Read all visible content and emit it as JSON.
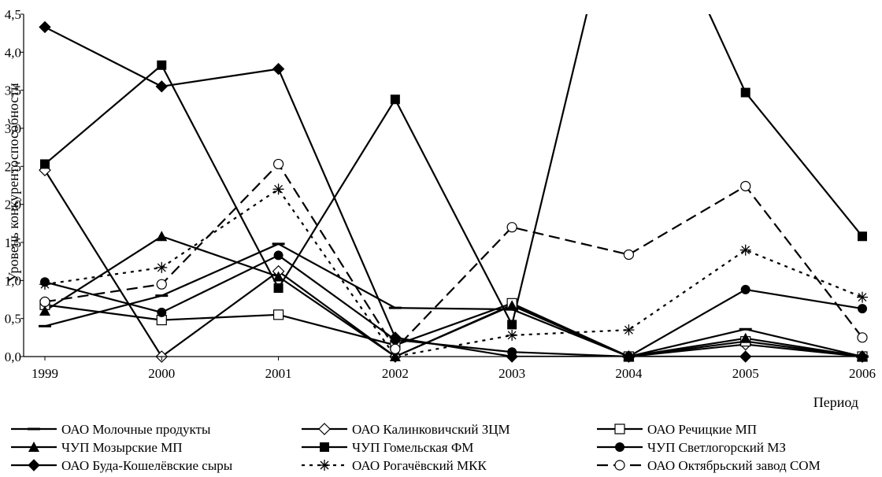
{
  "chart_data": {
    "type": "line",
    "title": "",
    "xlabel": "Период",
    "ylabel": "Уровень конкурентоспособности",
    "categories": [
      "1999",
      "2000",
      "2001",
      "2002",
      "2003",
      "2004",
      "2005",
      "2006"
    ],
    "ylim": [
      0,
      4.5
    ],
    "yticks": [
      "0,0",
      "0,5",
      "1,0",
      "1,5",
      "2,0",
      "2,5",
      "3,0",
      "3,5",
      "4,0",
      "4,5"
    ],
    "grid": false,
    "legend_position": "bottom",
    "series": [
      {
        "name": "ОАО Молочные продукты",
        "values": [
          0.4,
          0.8,
          1.48,
          0.64,
          0.62,
          0.0,
          0.36,
          0.0
        ],
        "marker": "dash",
        "dash": "solid"
      },
      {
        "name": "ОАО Калинковичский ЗЦМ",
        "values": [
          2.45,
          0.0,
          1.12,
          0.0,
          0.68,
          0.0,
          0.16,
          0.0
        ],
        "marker": "diamond-open",
        "dash": "solid"
      },
      {
        "name": "ОАО Речицкие МП",
        "values": [
          0.68,
          0.48,
          0.55,
          0.15,
          0.7,
          0.0,
          0.2,
          0.0
        ],
        "marker": "square-open",
        "dash": "solid"
      },
      {
        "name": "ЧУП Мозырские МП",
        "values": [
          0.6,
          1.58,
          1.05,
          0.0,
          0.67,
          0.0,
          0.24,
          0.0
        ],
        "marker": "triangle-filled",
        "dash": "solid"
      },
      {
        "name": "ЧУП Гомельская ФМ",
        "values": [
          2.53,
          3.83,
          0.9,
          3.38,
          0.42,
          6.8,
          3.47,
          1.58
        ],
        "marker": "square-filled",
        "dash": "solid"
      },
      {
        "name": "ЧУП Светлогорский МЗ",
        "values": [
          0.98,
          0.58,
          1.33,
          0.22,
          0.06,
          0.0,
          0.88,
          0.63
        ],
        "marker": "circle-filled",
        "dash": "solid"
      },
      {
        "name": "ОАО Буда-Кошелёвские сыры",
        "values": [
          4.33,
          3.55,
          3.78,
          0.25,
          0.0,
          0.0,
          0.0,
          0.0
        ],
        "marker": "diamond-filled",
        "dash": "solid"
      },
      {
        "name": "ОАО Рогачёвский МКК",
        "values": [
          0.95,
          1.17,
          2.2,
          0.0,
          0.28,
          0.35,
          1.4,
          0.78
        ],
        "marker": "asterisk",
        "dash": "dotted"
      },
      {
        "name": "ОАО Октябрьский завод СОМ",
        "values": [
          0.72,
          0.95,
          2.53,
          0.1,
          1.7,
          1.34,
          2.24,
          0.25
        ],
        "marker": "circle-open",
        "dash": "dashed"
      }
    ]
  }
}
